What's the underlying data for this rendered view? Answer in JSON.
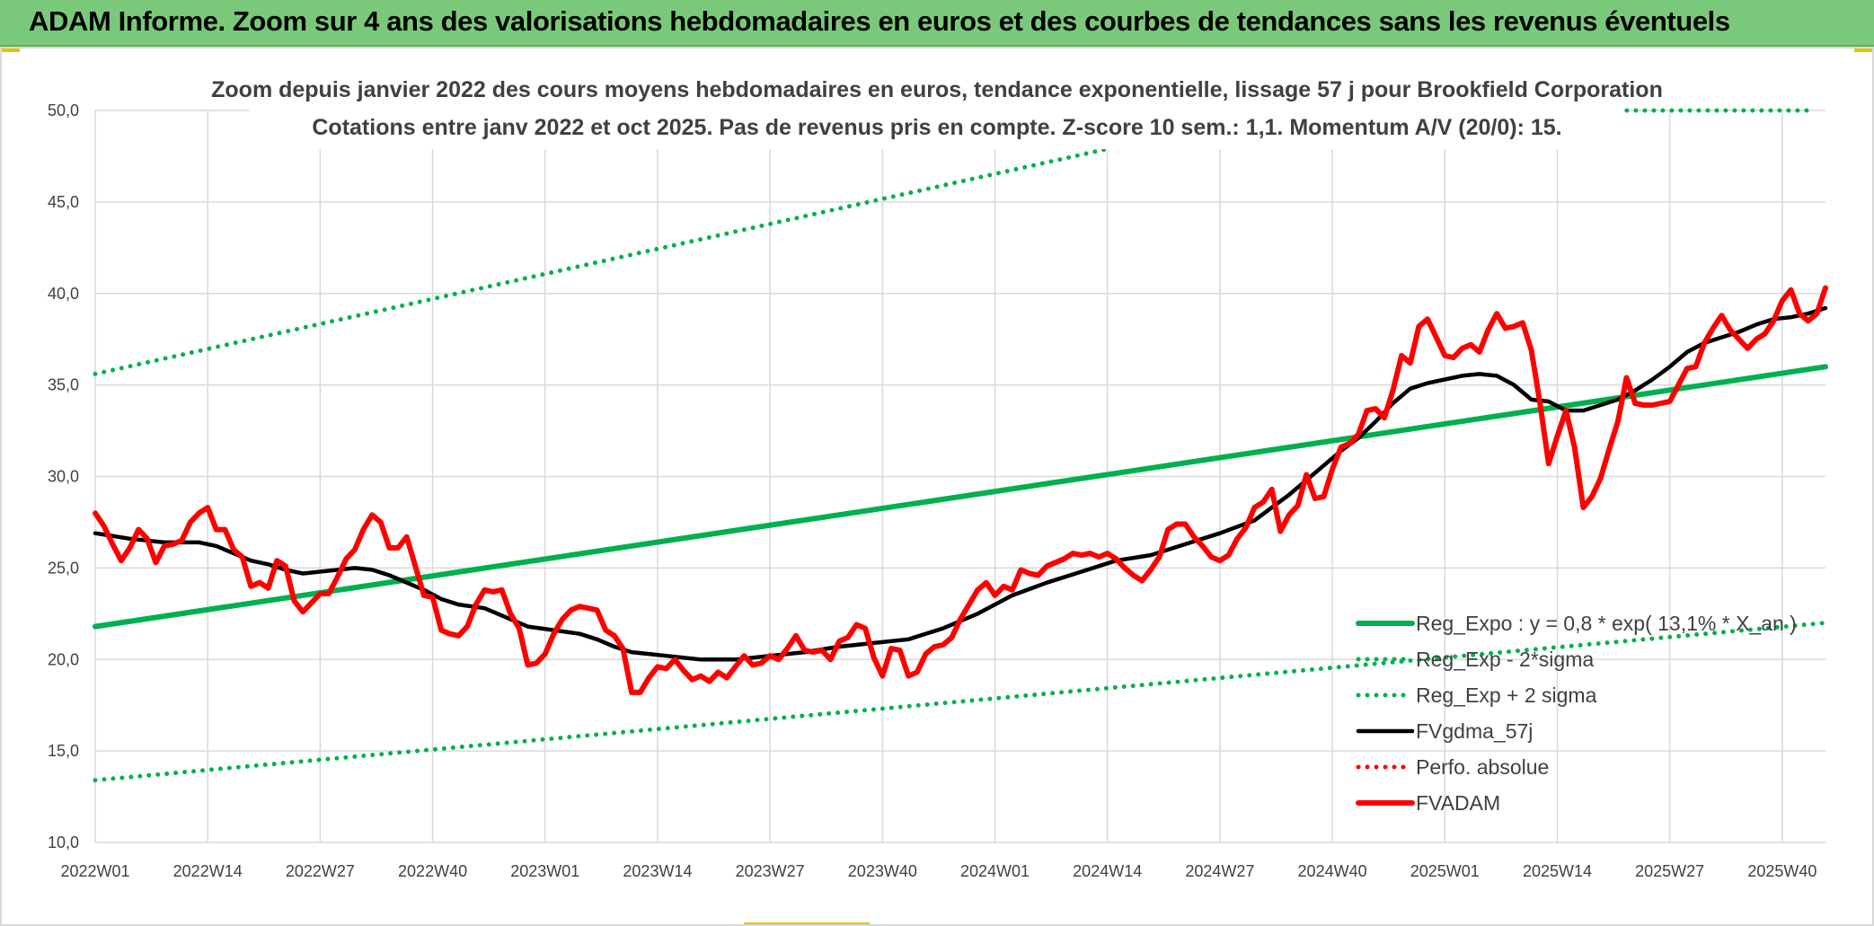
{
  "header": {
    "title": "ADAM Informe. Zoom sur 4 ans des valorisations hebdomadaires en euros et des courbes de tendances sans les revenus éventuels"
  },
  "colors": {
    "header_bg": "#7ac97a",
    "trend_green": "#00b050",
    "price_red": "#ff0000",
    "smooth_black": "#000000",
    "grid": "#d9d9d9"
  },
  "chart_data": {
    "type": "line",
    "title": "Zoom depuis janvier 2022 des cours moyens hebdomadaires en euros, tendance exponentielle, lissage 57 j pour Brookfield Corporation",
    "subtitle": "Cotations entre janv 2022 et oct 2025. Pas de revenus pris en compte. Z-score 10 sem.: 1,1. Momentum A/V (20/0): 15.",
    "xlabel": "",
    "ylabel": "",
    "ylim": [
      10,
      50
    ],
    "yticks": [
      "10,0",
      "15,0",
      "20,0",
      "25,0",
      "30,0",
      "35,0",
      "40,0",
      "45,0",
      "50,0"
    ],
    "xticks": [
      {
        "label": "2022W01",
        "week": 0
      },
      {
        "label": "2022W14",
        "week": 13
      },
      {
        "label": "2022W27",
        "week": 26
      },
      {
        "label": "2022W40",
        "week": 39
      },
      {
        "label": "2023W01",
        "week": 52
      },
      {
        "label": "2023W14",
        "week": 65
      },
      {
        "label": "2023W27",
        "week": 78
      },
      {
        "label": "2023W40",
        "week": 91
      },
      {
        "label": "2024W01",
        "week": 104
      },
      {
        "label": "2024W14",
        "week": 117
      },
      {
        "label": "2024W27",
        "week": 130
      },
      {
        "label": "2024W40",
        "week": 143
      },
      {
        "label": "2025W01",
        "week": 156
      },
      {
        "label": "2025W14",
        "week": 169
      },
      {
        "label": "2025W27",
        "week": 182
      },
      {
        "label": "2025W40",
        "week": 195
      }
    ],
    "x_range_weeks": [
      0,
      200
    ],
    "series": [
      {
        "name": "Reg_Expo : y = 0,8 * exp( 13,1% * X_an )",
        "style": "solid-thick",
        "color": "#00b050",
        "points": [
          [
            0,
            21.8
          ],
          [
            200,
            36.0
          ]
        ]
      },
      {
        "name": "Reg_Exp - 2*sigma",
        "style": "dotted",
        "color": "#00b050",
        "points": [
          [
            0,
            13.4
          ],
          [
            200,
            22.0
          ]
        ]
      },
      {
        "name": "Reg_Exp + 2 sigma",
        "style": "dotted",
        "color": "#00b050",
        "points": [
          [
            0,
            35.6
          ],
          [
            117,
            47.9
          ]
        ],
        "extra_segment": [
          [
            176,
            50.0
          ],
          [
            198,
            50.0
          ]
        ]
      },
      {
        "name": "FVgdma_57j",
        "style": "solid",
        "color": "#000000",
        "points": [
          [
            0,
            26.9
          ],
          [
            4,
            26.6
          ],
          [
            8,
            26.4
          ],
          [
            12,
            26.4
          ],
          [
            14,
            26.2
          ],
          [
            16,
            25.8
          ],
          [
            18,
            25.4
          ],
          [
            20,
            25.2
          ],
          [
            22,
            24.9
          ],
          [
            24,
            24.7
          ],
          [
            26,
            24.8
          ],
          [
            30,
            25.0
          ],
          [
            32,
            24.9
          ],
          [
            34,
            24.6
          ],
          [
            36,
            24.2
          ],
          [
            38,
            23.8
          ],
          [
            40,
            23.3
          ],
          [
            42,
            23.0
          ],
          [
            45,
            22.8
          ],
          [
            48,
            22.2
          ],
          [
            50,
            21.8
          ],
          [
            53,
            21.6
          ],
          [
            56,
            21.4
          ],
          [
            58,
            21.1
          ],
          [
            60,
            20.7
          ],
          [
            62,
            20.4
          ],
          [
            64,
            20.3
          ],
          [
            66,
            20.2
          ],
          [
            70,
            20.0
          ],
          [
            74,
            20.0
          ],
          [
            78,
            20.2
          ],
          [
            82,
            20.4
          ],
          [
            86,
            20.7
          ],
          [
            90,
            20.9
          ],
          [
            94,
            21.1
          ],
          [
            98,
            21.7
          ],
          [
            102,
            22.5
          ],
          [
            106,
            23.5
          ],
          [
            110,
            24.2
          ],
          [
            114,
            24.8
          ],
          [
            118,
            25.4
          ],
          [
            122,
            25.7
          ],
          [
            126,
            26.3
          ],
          [
            130,
            26.9
          ],
          [
            134,
            27.6
          ],
          [
            136,
            28.3
          ],
          [
            138,
            29.0
          ],
          [
            140,
            29.8
          ],
          [
            142,
            30.6
          ],
          [
            144,
            31.4
          ],
          [
            146,
            32.1
          ],
          [
            148,
            33.0
          ],
          [
            150,
            34.0
          ],
          [
            152,
            34.8
          ],
          [
            154,
            35.1
          ],
          [
            156,
            35.3
          ],
          [
            158,
            35.5
          ],
          [
            160,
            35.6
          ],
          [
            162,
            35.5
          ],
          [
            164,
            35.0
          ],
          [
            166,
            34.2
          ],
          [
            168,
            34.1
          ],
          [
            170,
            33.6
          ],
          [
            172,
            33.6
          ],
          [
            174,
            33.9
          ],
          [
            176,
            34.2
          ],
          [
            178,
            34.7
          ],
          [
            180,
            35.3
          ],
          [
            182,
            36.0
          ],
          [
            184,
            36.8
          ],
          [
            186,
            37.3
          ],
          [
            188,
            37.6
          ],
          [
            190,
            37.9
          ],
          [
            192,
            38.3
          ],
          [
            194,
            38.6
          ],
          [
            196,
            38.7
          ],
          [
            198,
            38.9
          ],
          [
            200,
            39.2
          ]
        ]
      },
      {
        "name": "Perfo. absolue",
        "style": "dotted",
        "color": "#ff0000",
        "points": []
      },
      {
        "name": "FVADAM",
        "style": "solid-thick",
        "color": "#ff0000",
        "points": [
          [
            0,
            28.0
          ],
          [
            1,
            27.3
          ],
          [
            2,
            26.3
          ],
          [
            3,
            25.4
          ],
          [
            4,
            26.1
          ],
          [
            5,
            27.1
          ],
          [
            6,
            26.6
          ],
          [
            7,
            25.3
          ],
          [
            8,
            26.2
          ],
          [
            9,
            26.3
          ],
          [
            10,
            26.5
          ],
          [
            11,
            27.5
          ],
          [
            12,
            28.0
          ],
          [
            13,
            28.3
          ],
          [
            14,
            27.1
          ],
          [
            15,
            27.1
          ],
          [
            16,
            26.0
          ],
          [
            17,
            25.6
          ],
          [
            18,
            24.0
          ],
          [
            19,
            24.2
          ],
          [
            20,
            23.9
          ],
          [
            21,
            25.4
          ],
          [
            22,
            25.1
          ],
          [
            23,
            23.2
          ],
          [
            24,
            22.6
          ],
          [
            25,
            23.1
          ],
          [
            26,
            23.6
          ],
          [
            27,
            23.6
          ],
          [
            28,
            24.5
          ],
          [
            29,
            25.5
          ],
          [
            30,
            26.0
          ],
          [
            31,
            27.1
          ],
          [
            32,
            27.9
          ],
          [
            33,
            27.5
          ],
          [
            34,
            26.1
          ],
          [
            35,
            26.1
          ],
          [
            36,
            26.7
          ],
          [
            37,
            25.1
          ],
          [
            38,
            23.5
          ],
          [
            39,
            23.4
          ],
          [
            40,
            21.6
          ],
          [
            41,
            21.4
          ],
          [
            42,
            21.3
          ],
          [
            43,
            21.8
          ],
          [
            44,
            23.0
          ],
          [
            45,
            23.8
          ],
          [
            46,
            23.7
          ],
          [
            47,
            23.8
          ],
          [
            48,
            22.5
          ],
          [
            49,
            21.7
          ],
          [
            50,
            19.7
          ],
          [
            51,
            19.8
          ],
          [
            52,
            20.3
          ],
          [
            53,
            21.4
          ],
          [
            54,
            22.2
          ],
          [
            55,
            22.7
          ],
          [
            56,
            22.9
          ],
          [
            57,
            22.8
          ],
          [
            58,
            22.7
          ],
          [
            59,
            21.6
          ],
          [
            60,
            21.3
          ],
          [
            61,
            20.6
          ],
          [
            62,
            18.2
          ],
          [
            63,
            18.2
          ],
          [
            64,
            19.0
          ],
          [
            65,
            19.6
          ],
          [
            66,
            19.5
          ],
          [
            67,
            20.0
          ],
          [
            68,
            19.4
          ],
          [
            69,
            18.9
          ],
          [
            70,
            19.1
          ],
          [
            71,
            18.8
          ],
          [
            72,
            19.3
          ],
          [
            73,
            19.0
          ],
          [
            74,
            19.6
          ],
          [
            75,
            20.2
          ],
          [
            76,
            19.7
          ],
          [
            77,
            19.8
          ],
          [
            78,
            20.2
          ],
          [
            79,
            20.0
          ],
          [
            80,
            20.6
          ],
          [
            81,
            21.3
          ],
          [
            82,
            20.5
          ],
          [
            83,
            20.4
          ],
          [
            84,
            20.5
          ],
          [
            85,
            20.0
          ],
          [
            86,
            21.0
          ],
          [
            87,
            21.2
          ],
          [
            88,
            21.9
          ],
          [
            89,
            21.7
          ],
          [
            90,
            20.1
          ],
          [
            91,
            19.1
          ],
          [
            92,
            20.6
          ],
          [
            93,
            20.5
          ],
          [
            94,
            19.1
          ],
          [
            95,
            19.3
          ],
          [
            96,
            20.3
          ],
          [
            97,
            20.7
          ],
          [
            98,
            20.8
          ],
          [
            99,
            21.2
          ],
          [
            100,
            22.2
          ],
          [
            101,
            23.0
          ],
          [
            102,
            23.8
          ],
          [
            103,
            24.2
          ],
          [
            104,
            23.5
          ],
          [
            105,
            24.0
          ],
          [
            106,
            23.8
          ],
          [
            107,
            24.9
          ],
          [
            108,
            24.7
          ],
          [
            109,
            24.6
          ],
          [
            110,
            25.1
          ],
          [
            111,
            25.3
          ],
          [
            112,
            25.5
          ],
          [
            113,
            25.8
          ],
          [
            114,
            25.7
          ],
          [
            115,
            25.8
          ],
          [
            116,
            25.6
          ],
          [
            117,
            25.8
          ],
          [
            118,
            25.5
          ],
          [
            119,
            25.0
          ],
          [
            120,
            24.6
          ],
          [
            121,
            24.3
          ],
          [
            122,
            24.9
          ],
          [
            123,
            25.6
          ],
          [
            124,
            27.1
          ],
          [
            125,
            27.4
          ],
          [
            126,
            27.4
          ],
          [
            127,
            26.7
          ],
          [
            128,
            26.2
          ],
          [
            129,
            25.6
          ],
          [
            130,
            25.4
          ],
          [
            131,
            25.7
          ],
          [
            132,
            26.6
          ],
          [
            133,
            27.2
          ],
          [
            134,
            28.3
          ],
          [
            135,
            28.6
          ],
          [
            136,
            29.3
          ],
          [
            137,
            27.0
          ],
          [
            138,
            27.9
          ],
          [
            139,
            28.4
          ],
          [
            140,
            30.1
          ],
          [
            141,
            28.8
          ],
          [
            142,
            28.9
          ],
          [
            143,
            30.4
          ],
          [
            144,
            31.6
          ],
          [
            145,
            31.8
          ],
          [
            146,
            32.3
          ],
          [
            147,
            33.6
          ],
          [
            148,
            33.7
          ],
          [
            149,
            33.2
          ],
          [
            150,
            34.7
          ],
          [
            151,
            36.6
          ],
          [
            152,
            36.2
          ],
          [
            153,
            38.2
          ],
          [
            154,
            38.6
          ],
          [
            155,
            37.6
          ],
          [
            156,
            36.6
          ],
          [
            157,
            36.5
          ],
          [
            158,
            37.0
          ],
          [
            159,
            37.2
          ],
          [
            160,
            36.8
          ],
          [
            161,
            38.0
          ],
          [
            162,
            38.9
          ],
          [
            163,
            38.1
          ],
          [
            164,
            38.2
          ],
          [
            165,
            38.4
          ],
          [
            166,
            36.9
          ],
          [
            167,
            34.0
          ],
          [
            168,
            30.7
          ],
          [
            169,
            32.2
          ],
          [
            170,
            33.6
          ],
          [
            171,
            31.6
          ],
          [
            172,
            28.3
          ],
          [
            173,
            28.9
          ],
          [
            174,
            29.9
          ],
          [
            175,
            31.5
          ],
          [
            176,
            33.0
          ],
          [
            177,
            35.4
          ],
          [
            178,
            34.0
          ],
          [
            179,
            33.9
          ],
          [
            180,
            33.9
          ],
          [
            181,
            34.0
          ],
          [
            182,
            34.1
          ],
          [
            183,
            35.0
          ],
          [
            184,
            35.9
          ],
          [
            185,
            36.0
          ],
          [
            186,
            37.3
          ],
          [
            187,
            38.1
          ],
          [
            188,
            38.8
          ],
          [
            189,
            38.0
          ],
          [
            190,
            37.5
          ],
          [
            191,
            37.0
          ],
          [
            192,
            37.5
          ],
          [
            193,
            37.8
          ],
          [
            194,
            38.5
          ],
          [
            195,
            39.6
          ],
          [
            196,
            40.2
          ],
          [
            197,
            38.9
          ],
          [
            198,
            38.5
          ],
          [
            199,
            38.9
          ],
          [
            200,
            40.3
          ]
        ]
      }
    ],
    "legend_position": "bottom-right"
  }
}
